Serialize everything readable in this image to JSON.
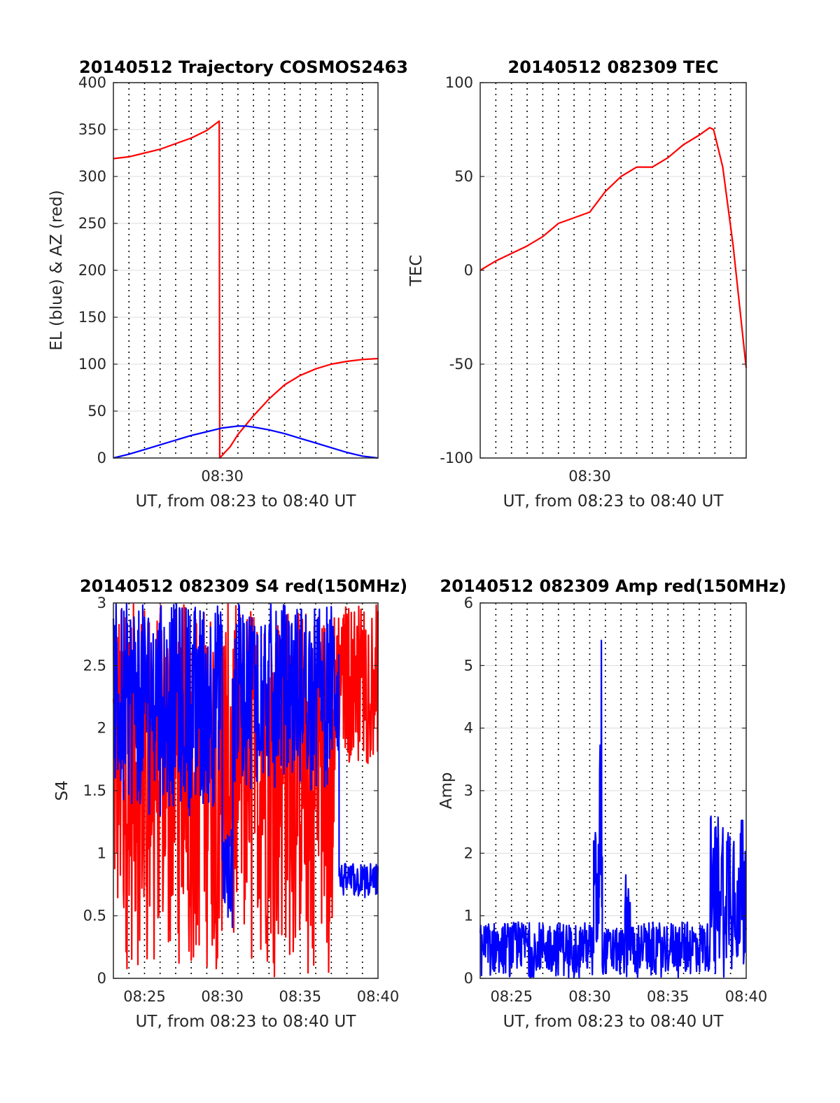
{
  "chart_data": [
    {
      "type": "line",
      "title": "20140512 Trajectory COSMOS2463",
      "xlabel": "UT, from 08:23 to 08:40 UT",
      "ylabel": "EL (blue) & AZ (red)",
      "xlim": [
        "08:23",
        "08:40"
      ],
      "ylim": [
        0,
        400
      ],
      "yticks": [
        "0",
        "50",
        "100",
        "150",
        "200",
        "250",
        "300",
        "350",
        "400"
      ],
      "xticks": [
        {
          "at": "08:30",
          "label": "08:30"
        }
      ],
      "grid": "on",
      "series": [
        {
          "color": "#ff0000",
          "points": [
            [
              "08:23",
              319
            ],
            [
              "08:24",
              321
            ],
            [
              "08:25",
              325
            ],
            [
              "08:26",
              329
            ],
            [
              "08:27",
              335
            ],
            [
              "08:28",
              341
            ],
            [
              "08:29",
              349
            ],
            [
              "08:29:48",
              359
            ],
            [
              "08:29:50",
              0
            ],
            [
              "08:30:30",
              12
            ],
            [
              "08:31",
              25
            ],
            [
              "08:32",
              45
            ],
            [
              "08:33",
              63
            ],
            [
              "08:34",
              78
            ],
            [
              "08:35",
              88
            ],
            [
              "08:36",
              95
            ],
            [
              "08:37",
              100
            ],
            [
              "08:38",
              103
            ],
            [
              "08:39",
              105
            ],
            [
              "08:40",
              106
            ]
          ]
        },
        {
          "color": "#0000ff",
          "points": [
            [
              "08:23",
              0
            ],
            [
              "08:24",
              4
            ],
            [
              "08:25",
              9
            ],
            [
              "08:26",
              14
            ],
            [
              "08:27",
              19
            ],
            [
              "08:28",
              24
            ],
            [
              "08:29",
              28
            ],
            [
              "08:30",
              32
            ],
            [
              "08:31",
              34
            ],
            [
              "08:31:30",
              34
            ],
            [
              "08:32",
              33
            ],
            [
              "08:33",
              30
            ],
            [
              "08:34",
              26
            ],
            [
              "08:35",
              21
            ],
            [
              "08:36",
              16
            ],
            [
              "08:37",
              11
            ],
            [
              "08:38",
              6
            ],
            [
              "08:39",
              2
            ],
            [
              "08:40",
              0
            ]
          ]
        }
      ]
    },
    {
      "type": "line",
      "title": "20140512 082309 TEC",
      "xlabel": "UT, from 08:23 to 08:40 UT",
      "ylabel": "TEC",
      "xlim": [
        "08:23",
        "08:40"
      ],
      "ylim": [
        -100,
        100
      ],
      "yticks": [
        "-100",
        "-50",
        "0",
        "50",
        "100"
      ],
      "xticks": [
        {
          "at": "08:30",
          "label": "08:30"
        }
      ],
      "grid": "on",
      "series": [
        {
          "color": "#ff0000",
          "points": [
            [
              "08:23",
              0
            ],
            [
              "08:24",
              5
            ],
            [
              "08:25",
              9
            ],
            [
              "08:26",
              13
            ],
            [
              "08:27",
              18
            ],
            [
              "08:28",
              25
            ],
            [
              "08:29",
              28
            ],
            [
              "08:30",
              31
            ],
            [
              "08:31",
              42
            ],
            [
              "08:32",
              50
            ],
            [
              "08:33",
              55
            ],
            [
              "08:34",
              55
            ],
            [
              "08:35",
              60
            ],
            [
              "08:36",
              67
            ],
            [
              "08:37",
              72
            ],
            [
              "08:37:40",
              76
            ],
            [
              "08:37:55",
              75
            ],
            [
              "08:38:30",
              55
            ],
            [
              "08:39:10",
              13
            ],
            [
              "08:40",
              -52
            ]
          ]
        }
      ]
    },
    {
      "type": "line",
      "title": "20140512 082309 S4 red(150MHz)",
      "xlabel": "UT, from 08:23 to 08:40 UT",
      "ylabel": "S4",
      "xlim": [
        "08:23",
        "08:40"
      ],
      "ylim": [
        0,
        3
      ],
      "yticks": [
        "0",
        "0.5",
        "1",
        "1.5",
        "2",
        "2.5",
        "3"
      ],
      "xticks": [
        {
          "at": "08:25",
          "label": "08:25"
        },
        {
          "at": "08:30",
          "label": "08:30"
        },
        {
          "at": "08:35",
          "label": "08:35"
        },
        {
          "at": "08:40",
          "label": "08:40"
        }
      ],
      "grid": "on",
      "series": [
        {
          "color": "#ff0000",
          "kind": "noise",
          "segments": [
            {
              "start": "08:23",
              "end": "08:37:15",
              "min": 0.0,
              "max": 3.0
            },
            {
              "start": "08:37:15",
              "end": "08:40",
              "min": 1.7,
              "max": 3.0
            }
          ]
        },
        {
          "color": "#0000ff",
          "kind": "noise",
          "segments": [
            {
              "start": "08:23",
              "end": "08:30",
              "min": 1.3,
              "max": 3.0
            },
            {
              "start": "08:30",
              "end": "08:30:40",
              "min": 0.4,
              "max": 1.2
            },
            {
              "start": "08:30:40",
              "end": "08:37:30",
              "min": 1.5,
              "max": 3.0
            },
            {
              "start": "08:37:30",
              "end": "08:40",
              "min": 0.62,
              "max": 0.92
            }
          ]
        }
      ]
    },
    {
      "type": "line",
      "title": "20140512 082309 Amp red(150MHz)",
      "xlabel": "UT, from 08:23 to 08:40 UT",
      "ylabel": "Amp",
      "xlim": [
        "08:23",
        "08:40"
      ],
      "ylim": [
        0,
        6
      ],
      "yticks": [
        "0",
        "1",
        "2",
        "3",
        "4",
        "5",
        "6"
      ],
      "xticks": [
        {
          "at": "08:25",
          "label": "08:25"
        },
        {
          "at": "08:30",
          "label": "08:30"
        },
        {
          "at": "08:35",
          "label": "08:35"
        },
        {
          "at": "08:40",
          "label": "08:40"
        }
      ],
      "grid": "on",
      "series": [
        {
          "color": "#0000ff",
          "kind": "noise",
          "segments": [
            {
              "start": "08:23",
              "end": "08:30:15",
              "min": 0.0,
              "max": 0.9
            },
            {
              "start": "08:30:15",
              "end": "08:30:35",
              "min": 0.0,
              "max": 2.4
            },
            {
              "start": "08:30:35",
              "end": "08:30:48",
              "min": 0.0,
              "max": 5.6
            },
            {
              "start": "08:30:48",
              "end": "08:32:15",
              "min": 0.0,
              "max": 0.8
            },
            {
              "start": "08:32:15",
              "end": "08:32:40",
              "min": 0.0,
              "max": 1.7
            },
            {
              "start": "08:32:40",
              "end": "08:37:40",
              "min": 0.0,
              "max": 0.9
            },
            {
              "start": "08:37:40",
              "end": "08:40",
              "min": 0.0,
              "max": 2.7
            }
          ]
        }
      ]
    }
  ]
}
